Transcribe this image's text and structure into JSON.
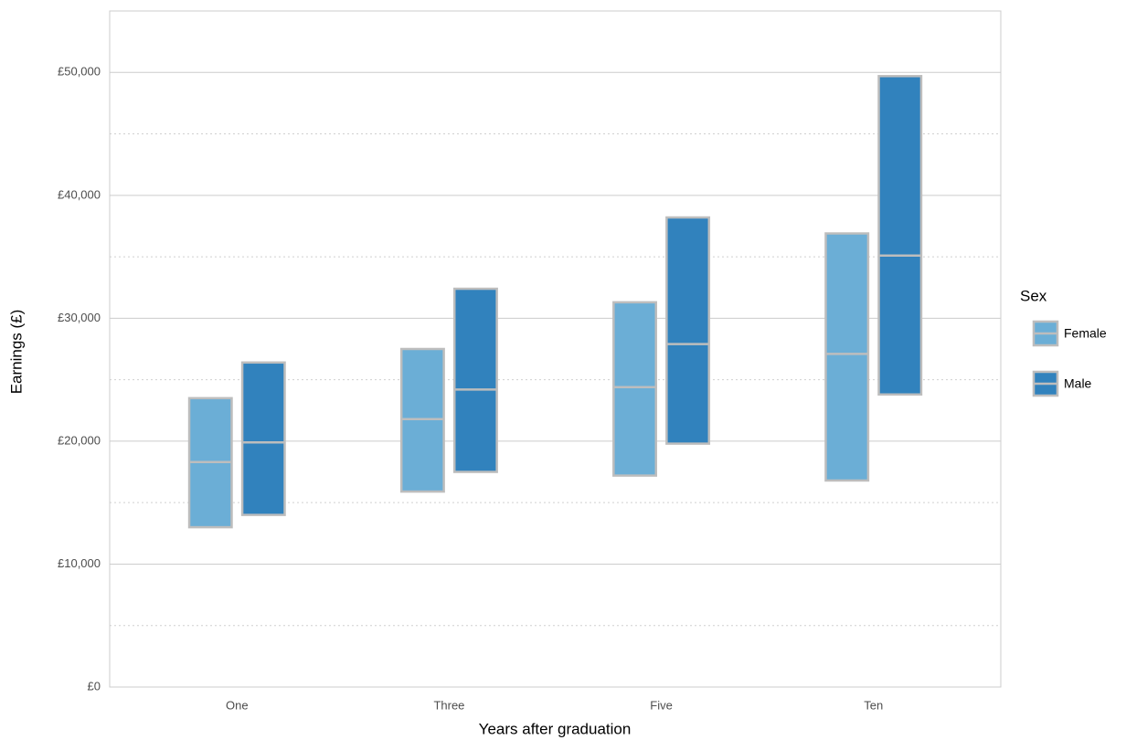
{
  "chart_data": {
    "type": "crossbar",
    "x_label": "Years after graduation",
    "y_label": "Earnings (£)",
    "categories": [
      "One",
      "Three",
      "Five",
      "Ten"
    ],
    "series": [
      {
        "name": "Female",
        "color": "#6baed6",
        "low": [
          13000,
          15900,
          17200,
          16800
        ],
        "median": [
          18300,
          21800,
          24400,
          27100
        ],
        "high": [
          23500,
          27500,
          31300,
          36900
        ]
      },
      {
        "name": "Male",
        "color": "#3182bd",
        "low": [
          14000,
          17500,
          19800,
          23800
        ],
        "median": [
          19900,
          24200,
          27900,
          35100
        ],
        "high": [
          26400,
          32400,
          38200,
          49700
        ]
      }
    ],
    "border_color": "#bdbdbd",
    "ylim": [
      0,
      55000
    ],
    "yticks": [
      {
        "value": 0,
        "label": "£0"
      },
      {
        "value": 10000,
        "label": "£10,000"
      },
      {
        "value": 20000,
        "label": "£20,000"
      },
      {
        "value": 30000,
        "label": "£30,000"
      },
      {
        "value": 40000,
        "label": "£40,000"
      },
      {
        "value": 50000,
        "label": "£50,000"
      }
    ],
    "minor_yticks": [
      5000,
      15000,
      25000,
      35000,
      45000
    ],
    "grid": true,
    "legend_title": "Sex",
    "legend_position": "right"
  }
}
